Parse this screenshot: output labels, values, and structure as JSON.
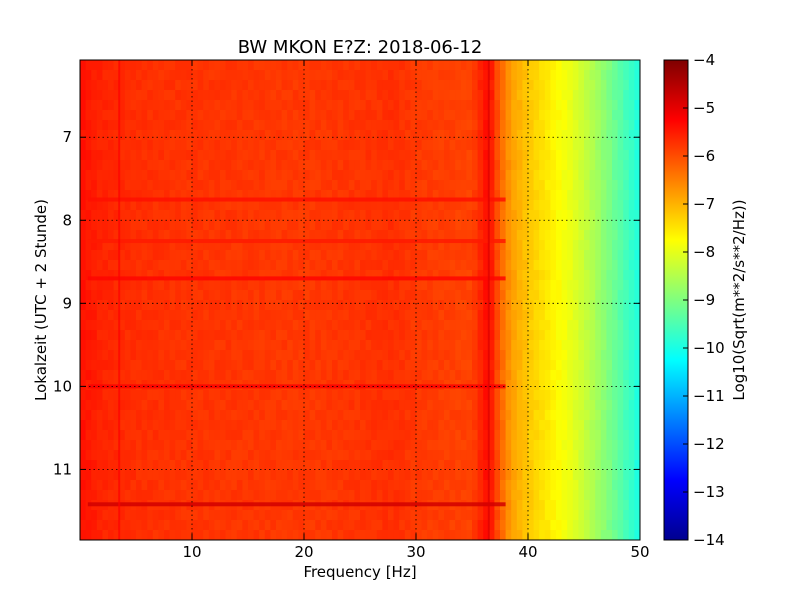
{
  "chart_data": {
    "type": "heatmap",
    "title": "BW MKON E?Z: 2018-06-12",
    "xlabel": "Frequency [Hz]",
    "ylabel": "Lokalzeit (UTC + 2 Stunde)",
    "xlim": [
      0,
      50
    ],
    "ylim": [
      6.07,
      11.85
    ],
    "y_inverted": true,
    "grid": true,
    "x_ticks": [
      10,
      20,
      30,
      40,
      50
    ],
    "y_ticks": [
      7,
      8,
      9,
      10,
      11
    ],
    "colormap": "jet",
    "colorbar": {
      "label": "Log10(Sqrt(m**2/s**2/Hz))",
      "min": -14,
      "max": -4,
      "ticks": [
        -4,
        -5,
        -6,
        -7,
        -8,
        -9,
        -10,
        -11,
        -12,
        -13,
        -14
      ]
    },
    "spectrum_profile": {
      "frequency_hz": [
        0,
        2,
        5,
        10,
        20,
        25,
        28,
        30,
        35,
        36.5,
        37.5,
        38.5,
        40,
        42,
        44,
        46,
        48,
        50
      ],
      "log_amplitude": [
        -5.4,
        -5.6,
        -5.7,
        -5.75,
        -5.8,
        -5.75,
        -5.7,
        -5.8,
        -5.9,
        -5.3,
        -6.2,
        -6.8,
        -7.2,
        -7.6,
        -8.0,
        -8.6,
        -9.3,
        -10.0
      ]
    },
    "horizontal_bands": [
      {
        "time": 11.42,
        "log_amplitude": -4.8
      },
      {
        "time": 10.0,
        "log_amplitude": -5.2
      },
      {
        "time": 8.7,
        "log_amplitude": -5.3
      },
      {
        "time": 7.75,
        "log_amplitude": -5.4
      },
      {
        "time": 8.25,
        "log_amplitude": -5.5
      }
    ],
    "vertical_lines_hz": [
      3.5,
      36.5
    ]
  }
}
